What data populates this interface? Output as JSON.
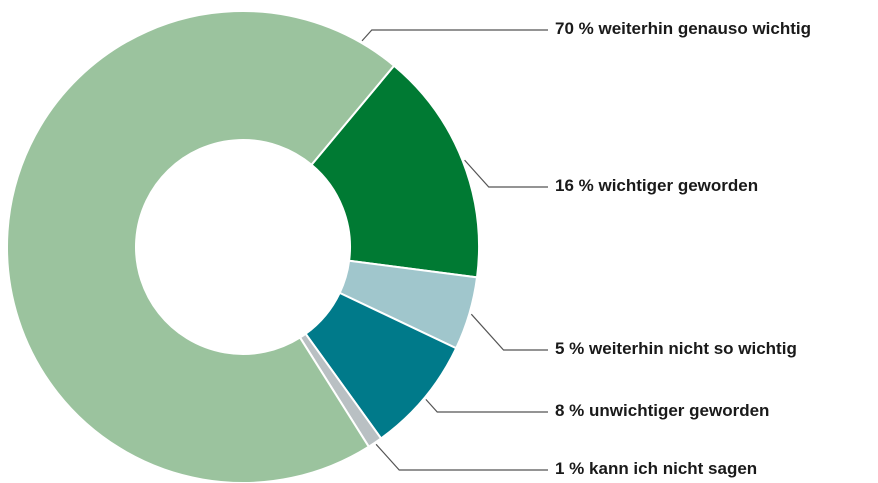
{
  "chart_data": {
    "type": "donut",
    "categories": [
      "weiterhin genauso wichtig",
      "wichtiger geworden",
      "weiterhin nicht so wichtig",
      "unwichtiger geworden",
      "kann ich nicht sagen"
    ],
    "values": [
      70,
      16,
      5,
      8,
      1
    ],
    "value_labels": [
      "70 %",
      "16 %",
      "5 %",
      "8 %",
      "1 %"
    ],
    "colors": [
      "#9bc39e",
      "#007a33",
      "#a0c6cc",
      "#007a8a",
      "#b9c0c3"
    ]
  }
}
